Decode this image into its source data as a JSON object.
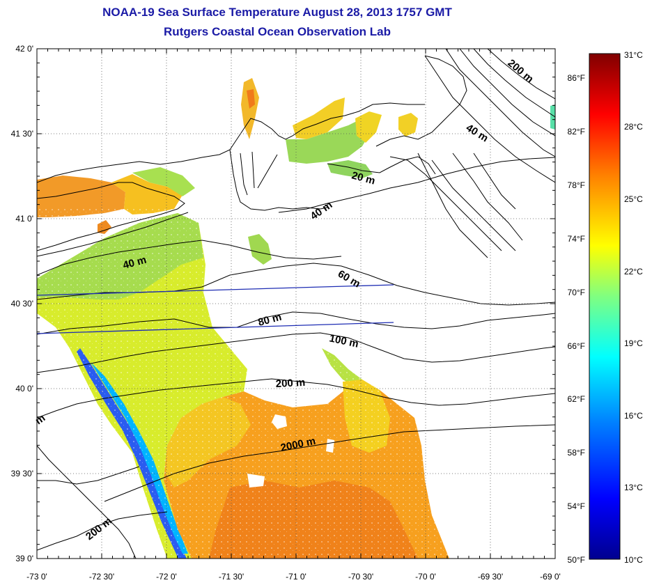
{
  "header": {
    "title_line1": "NOAA-19 Sea Surface Temperature August 28, 2013 1757 GMT",
    "title_line2": "Rutgers Coastal Ocean Observation Lab"
  },
  "map": {
    "lat_labels": [
      "42 0'",
      "41 30'",
      "41 0'",
      "40 30'",
      "40 0'",
      "39 30'",
      "39 0'"
    ],
    "lon_labels": [
      "-73 0'",
      "-72 30'",
      "-72 0'",
      "-71 30'",
      "-71 0'",
      "-70 30'",
      "-70 0'",
      "-69 30'",
      "-69 0'"
    ],
    "fahrenheit_labels": [
      "86°F",
      "82°F",
      "78°F",
      "74°F",
      "70°F",
      "66°F",
      "62°F",
      "58°F",
      "54°F",
      "50°F"
    ],
    "contour_labels": [
      "200 m",
      "40 m",
      "20 m",
      "40 m",
      "40 m",
      "60 m",
      "80 m",
      "100 m",
      "200 m",
      "2000 m",
      "200 m",
      "m"
    ]
  },
  "colorbar": {
    "min_label": "10°C",
    "max_label": "31°C",
    "celsius_labels": [
      "31°C",
      "28°C",
      "25°C",
      "22°C",
      "19°C",
      "16°C",
      "13°C",
      "10°C"
    ],
    "colors": [
      "#00008f",
      "#0000ff",
      "#0080ff",
      "#00ffff",
      "#80ff80",
      "#ffff00",
      "#ff8000",
      "#ff0000",
      "#800000"
    ]
  }
}
